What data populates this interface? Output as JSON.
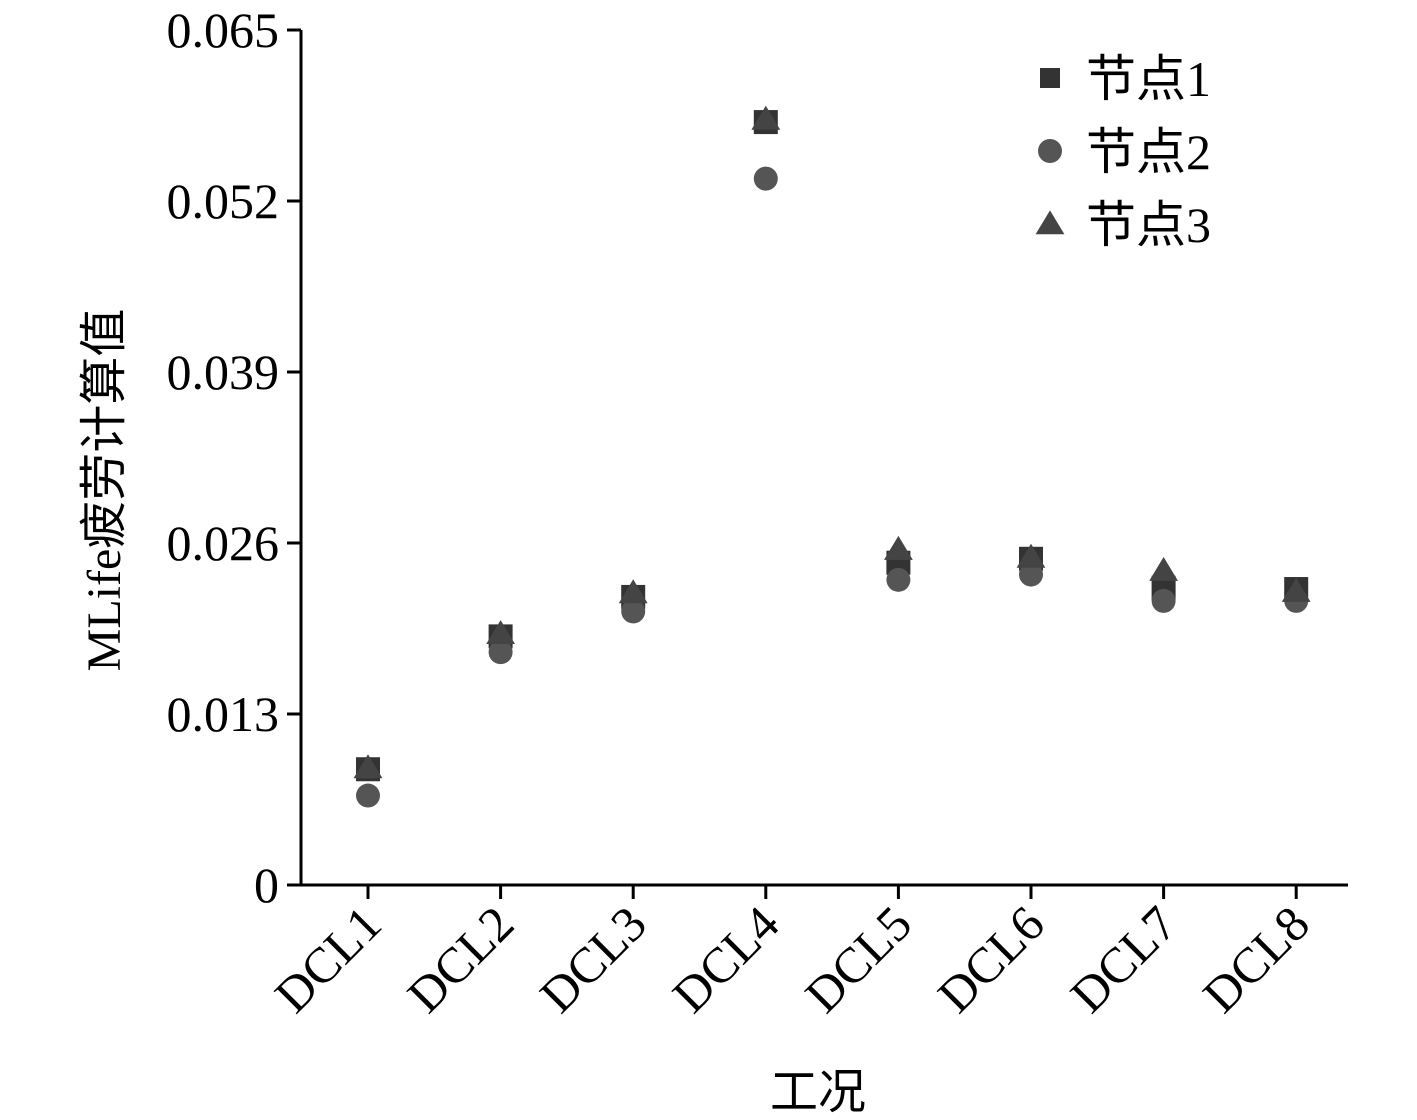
{
  "chart_data": {
    "type": "scatter",
    "title": "",
    "xlabel": "工况",
    "ylabel": "MLife疲劳计算值",
    "categories": [
      "DCL1",
      "DCL2",
      "DCL3",
      "DCL4",
      "DCL5",
      "DCL6",
      "DCL7",
      "DCL8"
    ],
    "ylim": [
      0,
      0.065
    ],
    "yticks": [
      "0",
      "0.013",
      "0.026",
      "0.039",
      "0.052",
      "0.065"
    ],
    "grid": false,
    "legend_position": "top-right",
    "series": [
      {
        "name": "节点1",
        "marker": "square",
        "color": "#333333",
        "values": [
          0.0088,
          0.0189,
          0.0219,
          0.058,
          0.0245,
          0.0248,
          0.0226,
          0.0225
        ]
      },
      {
        "name": "节点2",
        "marker": "circle",
        "color": "#555555",
        "values": [
          0.0068,
          0.0177,
          0.0208,
          0.0537,
          0.0232,
          0.0236,
          0.0216,
          0.0216
        ]
      },
      {
        "name": "节点3",
        "marker": "triangle",
        "color": "#444444",
        "values": [
          0.0089,
          0.0191,
          0.0222,
          0.0582,
          0.0255,
          0.0249,
          0.0239,
          0.0223
        ]
      }
    ]
  }
}
